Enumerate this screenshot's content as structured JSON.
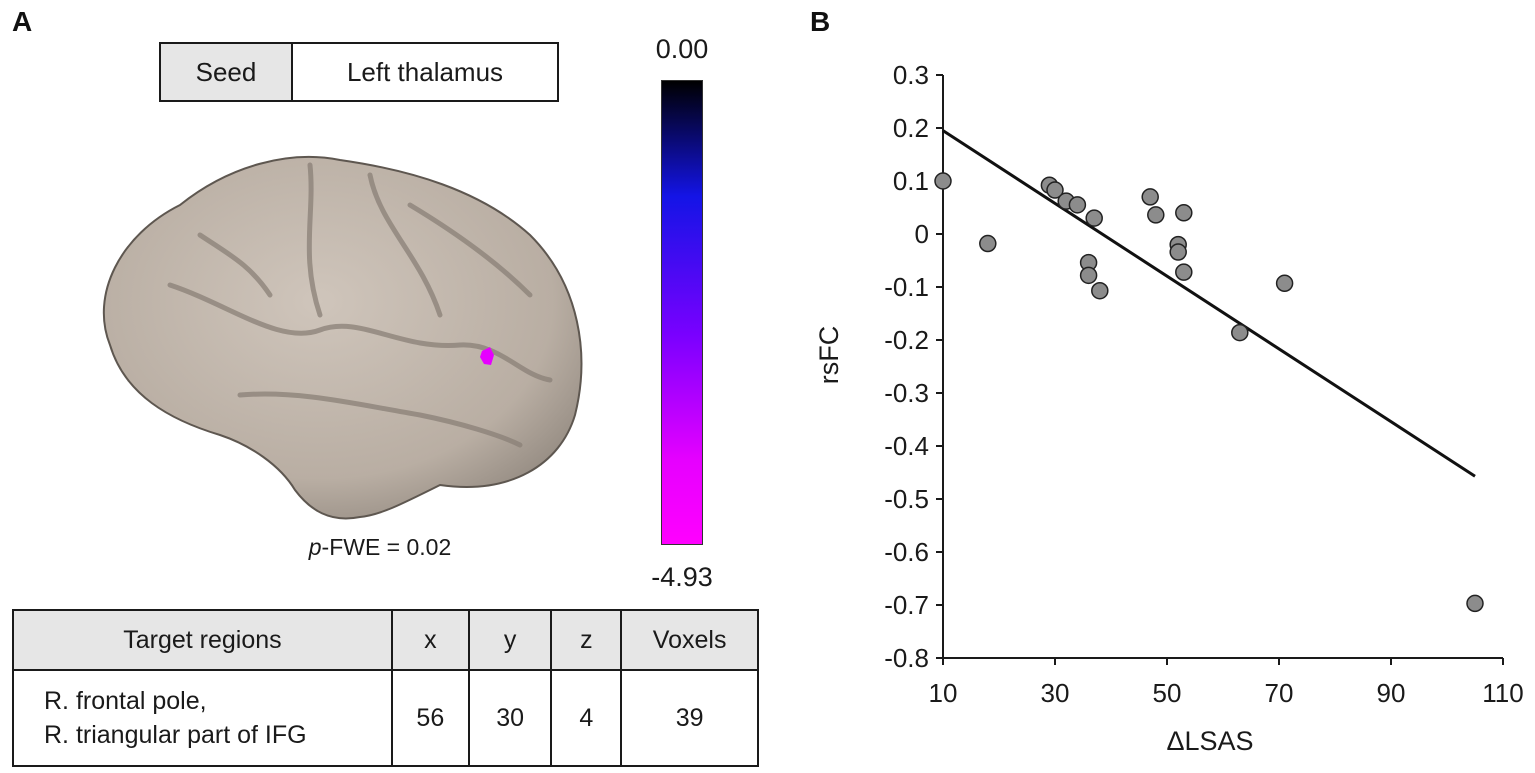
{
  "panels": {
    "a": "A",
    "b": "B"
  },
  "seed": {
    "key": "Seed",
    "value": "Left thalamus"
  },
  "colorbar": {
    "max_label": "0.00",
    "min_label": "-4.93",
    "colors": [
      "#000000",
      "#1414e6",
      "#7a00ff",
      "#e600ff",
      "#ff00ff"
    ]
  },
  "stat": {
    "p_italic": "p",
    "rest": "-FWE = 0.02"
  },
  "target_table": {
    "headers": [
      "Target regions",
      "x",
      "y",
      "z",
      "Voxels"
    ],
    "row": {
      "region_line1": "R. frontal pole,",
      "region_line2": "R. triangular part of IFG",
      "x": "56",
      "y": "30",
      "z": "4",
      "voxels": "39"
    }
  },
  "chart_data": {
    "type": "scatter",
    "title": "",
    "xlabel": "ΔLSAS",
    "ylabel": "rsFC",
    "xlim": [
      10,
      110
    ],
    "ylim": [
      -0.8,
      0.3
    ],
    "xticks": [
      10,
      30,
      50,
      70,
      90,
      110
    ],
    "yticks": [
      0.3,
      0.2,
      0.1,
      0,
      -0.1,
      -0.2,
      -0.3,
      -0.4,
      -0.5,
      -0.6,
      -0.7,
      -0.8
    ],
    "ytick_labels": [
      "0.3",
      "0.2",
      "0.1",
      "0",
      "-0.1",
      "-0.2",
      "-0.3",
      "-0.4",
      "-0.5",
      "-0.6",
      "-0.7",
      "-0.8"
    ],
    "points": [
      [
        10,
        0.1
      ],
      [
        18,
        -0.018
      ],
      [
        29,
        0.092
      ],
      [
        30,
        0.083
      ],
      [
        32,
        0.062
      ],
      [
        34,
        0.055
      ],
      [
        36,
        -0.054
      ],
      [
        36,
        -0.078
      ],
      [
        37,
        0.03
      ],
      [
        38,
        -0.107
      ],
      [
        47,
        0.07
      ],
      [
        48,
        0.036
      ],
      [
        52,
        -0.02
      ],
      [
        52,
        -0.034
      ],
      [
        53,
        0.04
      ],
      [
        53,
        -0.072
      ],
      [
        63,
        -0.186
      ],
      [
        71,
        -0.093
      ],
      [
        105,
        -0.697
      ]
    ],
    "fit_line": {
      "x": [
        10,
        105
      ],
      "y": [
        0.195,
        -0.457
      ]
    },
    "marker_color": "#8c8c8c",
    "grid": false
  }
}
